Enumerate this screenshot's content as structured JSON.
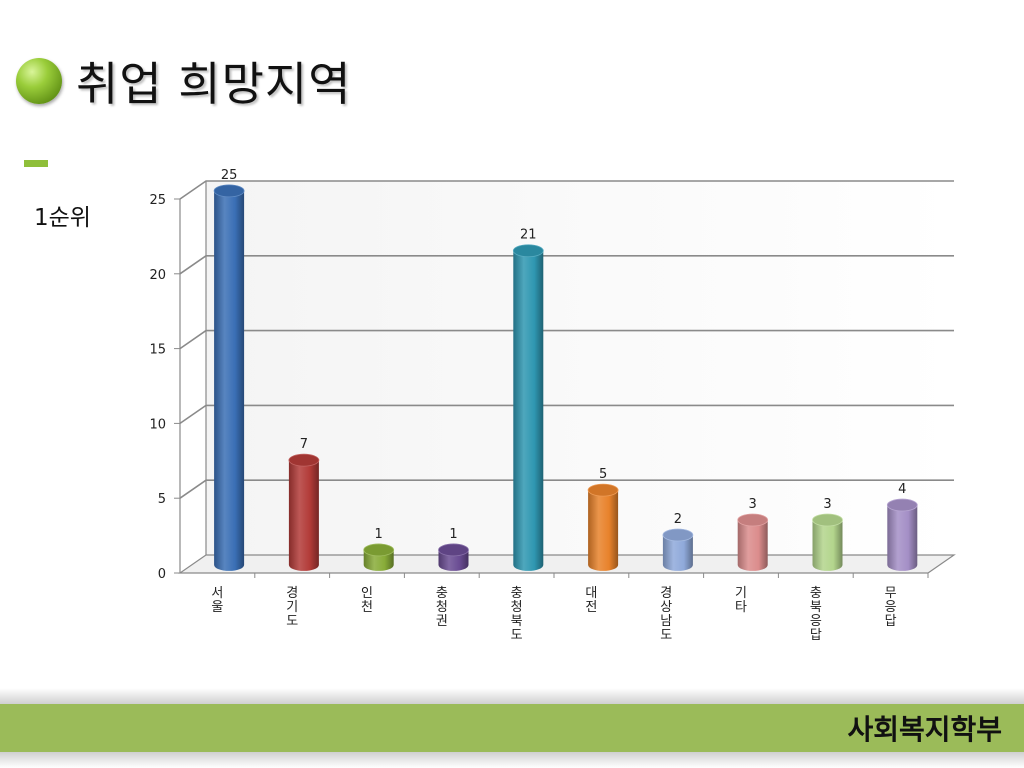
{
  "title": "취업 희망지역",
  "subtitle": "1순위",
  "footer": {
    "text": "사회복지학부"
  },
  "chart_data": {
    "type": "bar",
    "categories": [
      "서울",
      "경기도",
      "인천",
      "충청권",
      "충청북도",
      "대전",
      "경상남도",
      "기타",
      "충북응답",
      "무응답"
    ],
    "values": [
      25,
      7,
      1,
      1,
      21,
      5,
      2,
      3,
      3,
      4
    ],
    "colors": [
      "#3a6fb5",
      "#b23b38",
      "#88ac38",
      "#6a4c93",
      "#2f97b1",
      "#e8822b",
      "#8fa9da",
      "#db8c8c",
      "#b3d58c",
      "#a48fc6"
    ],
    "ylim": [
      0,
      25
    ],
    "yticks": [
      0,
      5,
      10,
      15,
      20,
      25
    ],
    "grid": true,
    "legend": "none",
    "style": "3d-cylinder"
  }
}
